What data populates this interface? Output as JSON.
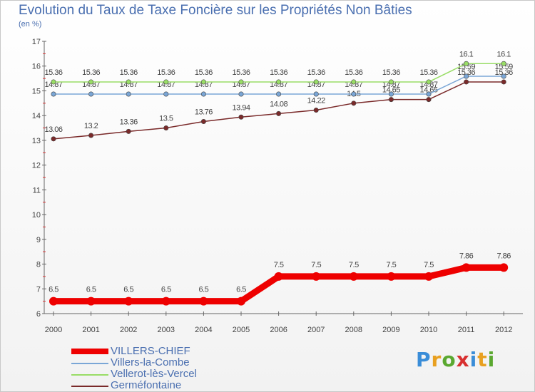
{
  "chart_data": {
    "type": "line",
    "title": "Evolution du Taux de Taxe Foncière sur les Propriétés Non Bâties",
    "unit_label": "(en %)",
    "xlabel": "",
    "ylabel": "",
    "ylim": [
      6,
      17
    ],
    "yticks": [
      "6",
      "7",
      "8",
      "9",
      "10",
      "11",
      "12",
      "13",
      "14",
      "15",
      "16",
      "17"
    ],
    "categories": [
      "2000",
      "2001",
      "2002",
      "2003",
      "2004",
      "2005",
      "2006",
      "2007",
      "2008",
      "2009",
      "2010",
      "2011",
      "2012"
    ],
    "series": [
      {
        "name": "VILLERS-CHIEF",
        "color": "#ee0000",
        "values": [
          6.5,
          6.5,
          6.5,
          6.5,
          6.5,
          6.5,
          7.5,
          7.5,
          7.5,
          7.5,
          7.5,
          7.86,
          7.86
        ],
        "labels": [
          "6.5",
          "6.5",
          "6.5",
          "6.5",
          "6.5",
          "6.5",
          "7.5",
          "7.5",
          "7.5",
          "7.5",
          "7.5",
          "7.86",
          "7.86"
        ]
      },
      {
        "name": "Villers-la-Combe",
        "color": "#7aa6d6",
        "values": [
          14.87,
          14.87,
          14.87,
          14.87,
          14.87,
          14.87,
          14.87,
          14.87,
          14.87,
          14.87,
          14.87,
          15.59,
          15.59
        ],
        "labels": [
          "14.87",
          "14.87",
          "14.87",
          "14.87",
          "14.87",
          "14.87",
          "14.87",
          "14.87",
          "14.87",
          "14.87",
          "14.87",
          "15.59",
          "15.59"
        ]
      },
      {
        "name": "Vellerot-lès-Vercel",
        "color": "#99dd66",
        "values": [
          15.36,
          15.36,
          15.36,
          15.36,
          15.36,
          15.36,
          15.36,
          15.36,
          15.36,
          15.36,
          15.36,
          16.1,
          16.1
        ],
        "labels": [
          "15.36",
          "15.36",
          "15.36",
          "15.36",
          "15.36",
          "15.36",
          "15.36",
          "15.36",
          "15.36",
          "15.36",
          "15.36",
          "16.1",
          "16.1"
        ]
      },
      {
        "name": "Germéfontaine",
        "color": "#7a2a2a",
        "values": [
          13.06,
          13.2,
          13.36,
          13.5,
          13.76,
          13.94,
          14.08,
          14.22,
          14.5,
          14.65,
          14.65,
          15.36,
          15.36
        ],
        "labels": [
          "13.06",
          "13.2",
          "13.36",
          "13.5",
          "13.76",
          "13.94",
          "14.08",
          "14.22",
          "14.5",
          "14.65",
          "14.65",
          "15.36",
          "15.36"
        ]
      }
    ],
    "legend_position": "bottom-left"
  },
  "logo_text": "Proxiti"
}
